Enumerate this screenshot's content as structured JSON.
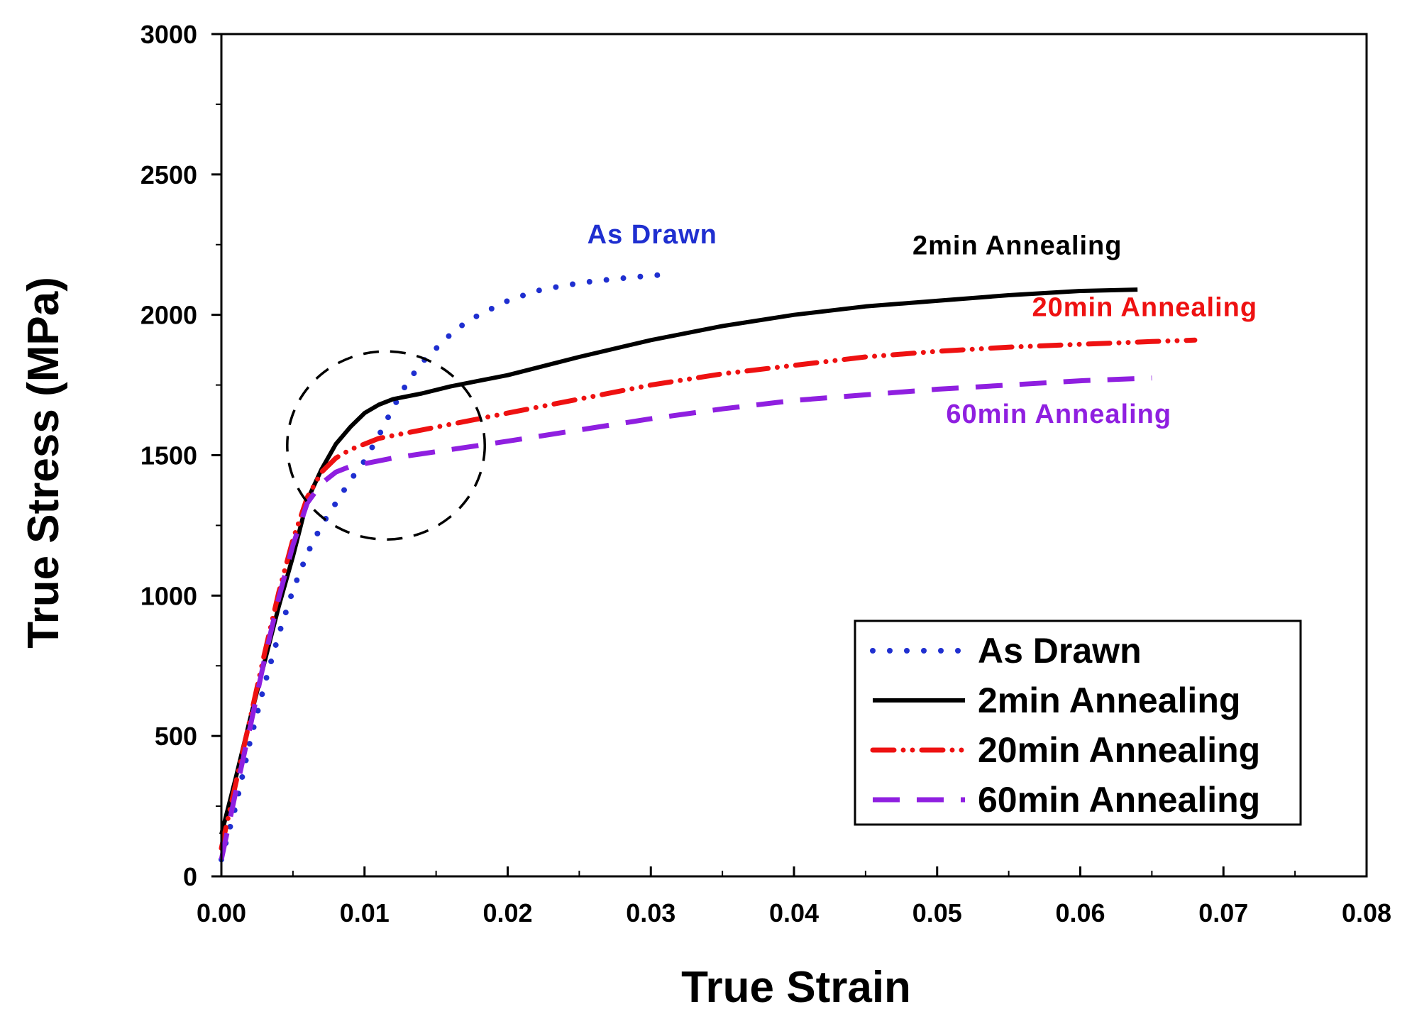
{
  "chart_data": {
    "type": "line",
    "title": "",
    "xlabel": "True Strain",
    "ylabel": "True Stress (MPa)",
    "xlim": [
      0,
      0.08
    ],
    "ylim": [
      0,
      3000
    ],
    "x_ticks": [
      0,
      0.01,
      0.02,
      0.03,
      0.04,
      0.05,
      0.06,
      0.07,
      0.08
    ],
    "x_tick_labels": [
      "0.00",
      "0.01",
      "0.02",
      "0.03",
      "0.04",
      "0.05",
      "0.06",
      "0.07",
      "0.08"
    ],
    "y_ticks": [
      0,
      500,
      1000,
      1500,
      2000,
      2500,
      3000
    ],
    "y_tick_labels": [
      "0",
      "500",
      "1000",
      "1500",
      "2000",
      "2500",
      "3000"
    ],
    "grid": false,
    "legend_position": "bottom-right",
    "series": [
      {
        "name": "As Drawn",
        "color": "#1f2fd0",
        "style": "dotted",
        "x": [
          0.0,
          0.001,
          0.002,
          0.003,
          0.004,
          0.005,
          0.006,
          0.007,
          0.008,
          0.009,
          0.01,
          0.011,
          0.012,
          0.013,
          0.014,
          0.015,
          0.016,
          0.017,
          0.018,
          0.02,
          0.022,
          0.024,
          0.026,
          0.028,
          0.03,
          0.0315
        ],
        "values": [
          60,
          250,
          480,
          680,
          860,
          1020,
          1150,
          1250,
          1330,
          1410,
          1480,
          1570,
          1670,
          1760,
          1830,
          1880,
          1930,
          1970,
          2000,
          2050,
          2085,
          2105,
          2120,
          2130,
          2140,
          2145
        ]
      },
      {
        "name": "2min Annealing",
        "color": "#000000",
        "style": "solid",
        "x": [
          0.0,
          0.001,
          0.002,
          0.003,
          0.004,
          0.005,
          0.006,
          0.007,
          0.008,
          0.009,
          0.01,
          0.011,
          0.012,
          0.014,
          0.016,
          0.018,
          0.02,
          0.025,
          0.03,
          0.035,
          0.04,
          0.045,
          0.05,
          0.055,
          0.06,
          0.064
        ],
        "values": [
          150,
          350,
          560,
          760,
          960,
          1140,
          1340,
          1450,
          1540,
          1600,
          1650,
          1680,
          1700,
          1720,
          1745,
          1765,
          1785,
          1850,
          1910,
          1960,
          2000,
          2030,
          2050,
          2070,
          2085,
          2090
        ]
      },
      {
        "name": "20min Annealing",
        "color": "#ee1111",
        "style": "dash-dot-dot",
        "x": [
          0.0,
          0.001,
          0.002,
          0.003,
          0.004,
          0.005,
          0.006,
          0.007,
          0.008,
          0.009,
          0.01,
          0.011,
          0.012,
          0.014,
          0.016,
          0.018,
          0.02,
          0.025,
          0.03,
          0.035,
          0.04,
          0.045,
          0.05,
          0.055,
          0.06,
          0.065,
          0.068
        ],
        "values": [
          100,
          330,
          560,
          790,
          1010,
          1200,
          1350,
          1440,
          1490,
          1520,
          1540,
          1560,
          1570,
          1590,
          1610,
          1630,
          1650,
          1700,
          1750,
          1790,
          1820,
          1850,
          1870,
          1885,
          1895,
          1905,
          1910
        ]
      },
      {
        "name": "60min Annealing",
        "color": "#8f1fe0",
        "style": "dashed",
        "x": [
          0.0,
          0.001,
          0.002,
          0.003,
          0.004,
          0.005,
          0.006,
          0.007,
          0.008,
          0.009,
          0.01,
          0.012,
          0.014,
          0.016,
          0.018,
          0.02,
          0.025,
          0.03,
          0.035,
          0.04,
          0.045,
          0.05,
          0.055,
          0.06,
          0.065
        ],
        "values": [
          60,
          300,
          530,
          770,
          990,
          1180,
          1330,
          1400,
          1440,
          1460,
          1470,
          1490,
          1505,
          1520,
          1535,
          1550,
          1590,
          1630,
          1665,
          1695,
          1715,
          1735,
          1750,
          1765,
          1775
        ]
      }
    ],
    "annotations": [
      {
        "text": "As Drawn",
        "color": "#1f2fd0",
        "anchor_x": 0.0301,
        "anchor_y": 2255
      },
      {
        "text": "2min Annealing",
        "color": "#000000",
        "anchor_x": 0.0556,
        "anchor_y": 2215
      },
      {
        "text": "20min Annealing",
        "color": "#ee1111",
        "anchor_x": 0.0645,
        "anchor_y": 1995
      },
      {
        "text": "60min Annealing",
        "color": "#8f1fe0",
        "anchor_x": 0.0585,
        "anchor_y": 1615
      }
    ],
    "highlight_ellipse": {
      "center_x": 0.0115,
      "center_y": 1535,
      "radius_x": 0.0069,
      "radius_y": 335,
      "color": "#000000",
      "style": "dashed"
    }
  }
}
